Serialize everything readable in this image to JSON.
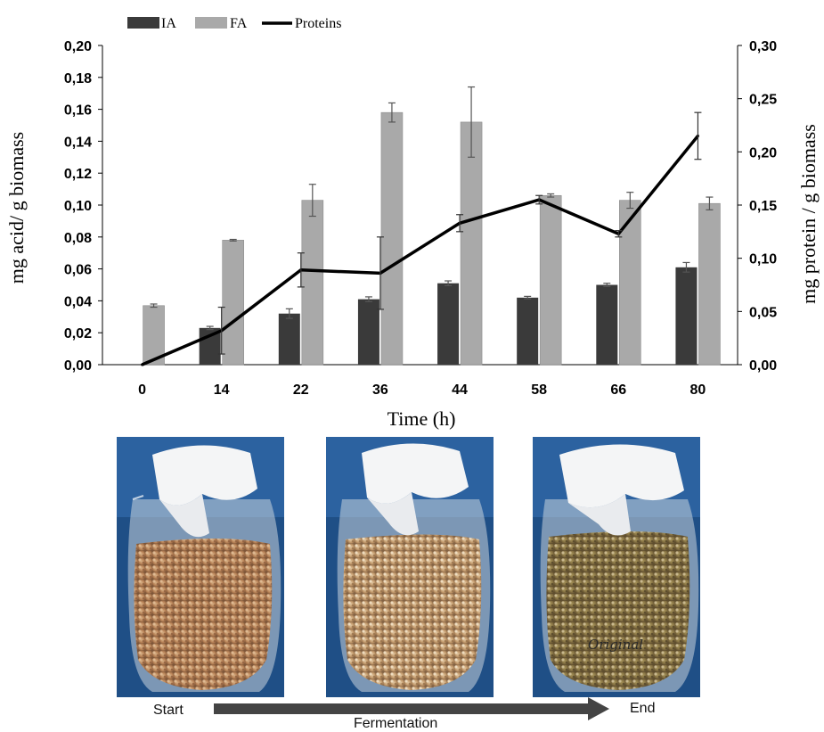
{
  "chart_data": {
    "type": "bar",
    "categories": [
      "0",
      "14",
      "22",
      "36",
      "44",
      "58",
      "66",
      "80"
    ],
    "xlabel": "Time (h)",
    "ylabel_left": "mg acid/ g biomass",
    "ylabel_right": "mg protein / g biomass",
    "ylim_left": [
      0,
      0.2
    ],
    "ylim_right": [
      0,
      0.3
    ],
    "yticks_left": [
      "0,00",
      "0,02",
      "0,04",
      "0,06",
      "0,08",
      "0,10",
      "0,12",
      "0,14",
      "0,16",
      "0,18",
      "0,20"
    ],
    "yticks_right": [
      "0,00",
      "0,05",
      "0,10",
      "0,15",
      "0,20",
      "0,25",
      "0,30"
    ],
    "legend_position": "top-left",
    "series": [
      {
        "name": "IA",
        "kind": "bar",
        "axis": "left",
        "color": "#3a3a3a",
        "values": [
          0.0,
          0.023,
          0.032,
          0.041,
          0.051,
          0.042,
          0.05,
          0.061
        ],
        "errors": [
          0.0,
          0.001,
          0.003,
          0.0015,
          0.0015,
          0.0008,
          0.001,
          0.003
        ]
      },
      {
        "name": "FA",
        "kind": "bar",
        "axis": "left",
        "color": "#a9a9a9",
        "values": [
          0.037,
          0.078,
          0.103,
          0.158,
          0.152,
          0.106,
          0.103,
          0.101
        ],
        "errors": [
          0.001,
          0.0005,
          0.01,
          0.006,
          0.022,
          0.001,
          0.005,
          0.004
        ]
      },
      {
        "name": "Proteins",
        "kind": "line",
        "axis": "right",
        "color": "#000000",
        "values": [
          0.0,
          0.032,
          0.089,
          0.086,
          0.133,
          0.155,
          0.123,
          0.215
        ],
        "errors": [
          0.0,
          0.022,
          0.016,
          0.034,
          0.008,
          0.004,
          0.003,
          0.022
        ]
      }
    ]
  },
  "photos": {
    "start_label": "Start",
    "middle_label": "Fermentation",
    "end_label": "End",
    "jar_label_text": "Original"
  }
}
